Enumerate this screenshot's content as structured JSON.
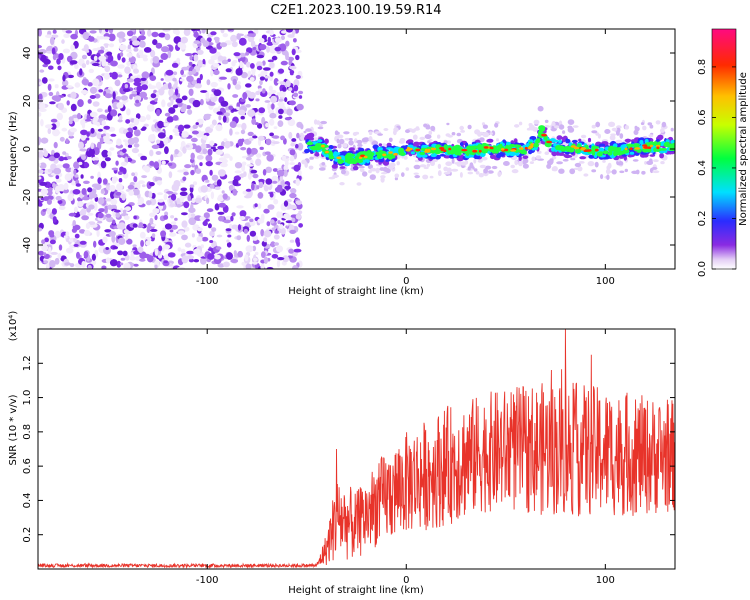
{
  "title": "C2E1.2023.100.19.59.R14",
  "chart_data": [
    {
      "type": "heatmap",
      "xlabel": "Height of straight line (km)",
      "ylabel": "Frequency (Hz)",
      "xlim": [
        -185,
        135
      ],
      "ylim": [
        -50,
        50
      ],
      "xticks": [
        -100,
        0,
        100
      ],
      "yticks": [
        -40,
        -20,
        0,
        20,
        40
      ],
      "noise_region_x": [
        -185,
        -53
      ],
      "signal_region_x": [
        -53,
        135
      ],
      "doppler_trace": [
        {
          "x": -50,
          "y": 2
        },
        {
          "x": -42,
          "y": 1
        },
        {
          "x": -35,
          "y": -4
        },
        {
          "x": -25,
          "y": -4
        },
        {
          "x": -15,
          "y": -2
        },
        {
          "x": -5,
          "y": -2
        },
        {
          "x": 0,
          "y": 0
        },
        {
          "x": 10,
          "y": -1
        },
        {
          "x": 20,
          "y": 0
        },
        {
          "x": 30,
          "y": -1
        },
        {
          "x": 40,
          "y": 0
        },
        {
          "x": 50,
          "y": 0
        },
        {
          "x": 60,
          "y": 0
        },
        {
          "x": 66,
          "y": 3
        },
        {
          "x": 68,
          "y": 8
        },
        {
          "x": 72,
          "y": 2
        },
        {
          "x": 80,
          "y": 1
        },
        {
          "x": 90,
          "y": 0
        },
        {
          "x": 100,
          "y": -1
        },
        {
          "x": 110,
          "y": 0
        },
        {
          "x": 120,
          "y": 1
        },
        {
          "x": 135,
          "y": 1
        }
      ],
      "colorbar": {
        "label": "Normalized spectral amplitude",
        "range": [
          0,
          0.95
        ],
        "ticks": [
          0.0,
          0.2,
          0.4,
          0.6,
          0.8
        ]
      }
    },
    {
      "type": "line",
      "xlabel": "Height of straight line (km)",
      "ylabel": "SNR (10 * v/v)",
      "scale_label": "(x10⁴)",
      "xlim": [
        -185,
        135
      ],
      "ylim": [
        0,
        1.4
      ],
      "xticks": [
        -100,
        0,
        100
      ],
      "yticks": [
        0.2,
        0.4,
        0.6,
        0.8,
        1.0,
        1.2
      ],
      "series": [
        {
          "color": "#e8332a",
          "envelope": [
            {
              "x": -185,
              "mean": 0.02,
              "spread": 0.01
            },
            {
              "x": -45,
              "mean": 0.02,
              "spread": 0.01
            },
            {
              "x": -40,
              "mean": 0.12,
              "spread": 0.1
            },
            {
              "x": -35,
              "mean": 0.3,
              "spread": 0.25
            },
            {
              "x": -25,
              "mean": 0.25,
              "spread": 0.2
            },
            {
              "x": -15,
              "mean": 0.38,
              "spread": 0.25
            },
            {
              "x": 0,
              "mean": 0.5,
              "spread": 0.3
            },
            {
              "x": 20,
              "mean": 0.6,
              "spread": 0.35
            },
            {
              "x": 40,
              "mean": 0.68,
              "spread": 0.35
            },
            {
              "x": 60,
              "mean": 0.7,
              "spread": 0.38
            },
            {
              "x": 80,
              "mean": 0.7,
              "spread": 0.4
            },
            {
              "x": 100,
              "mean": 0.68,
              "spread": 0.38
            },
            {
              "x": 120,
              "mean": 0.66,
              "spread": 0.35
            },
            {
              "x": 135,
              "mean": 0.66,
              "spread": 0.33
            }
          ],
          "spikes": [
            {
              "x": -35,
              "y": 0.7
            },
            {
              "x": 80,
              "y": 1.4
            },
            {
              "x": 93,
              "y": 1.25
            }
          ]
        }
      ]
    }
  ]
}
